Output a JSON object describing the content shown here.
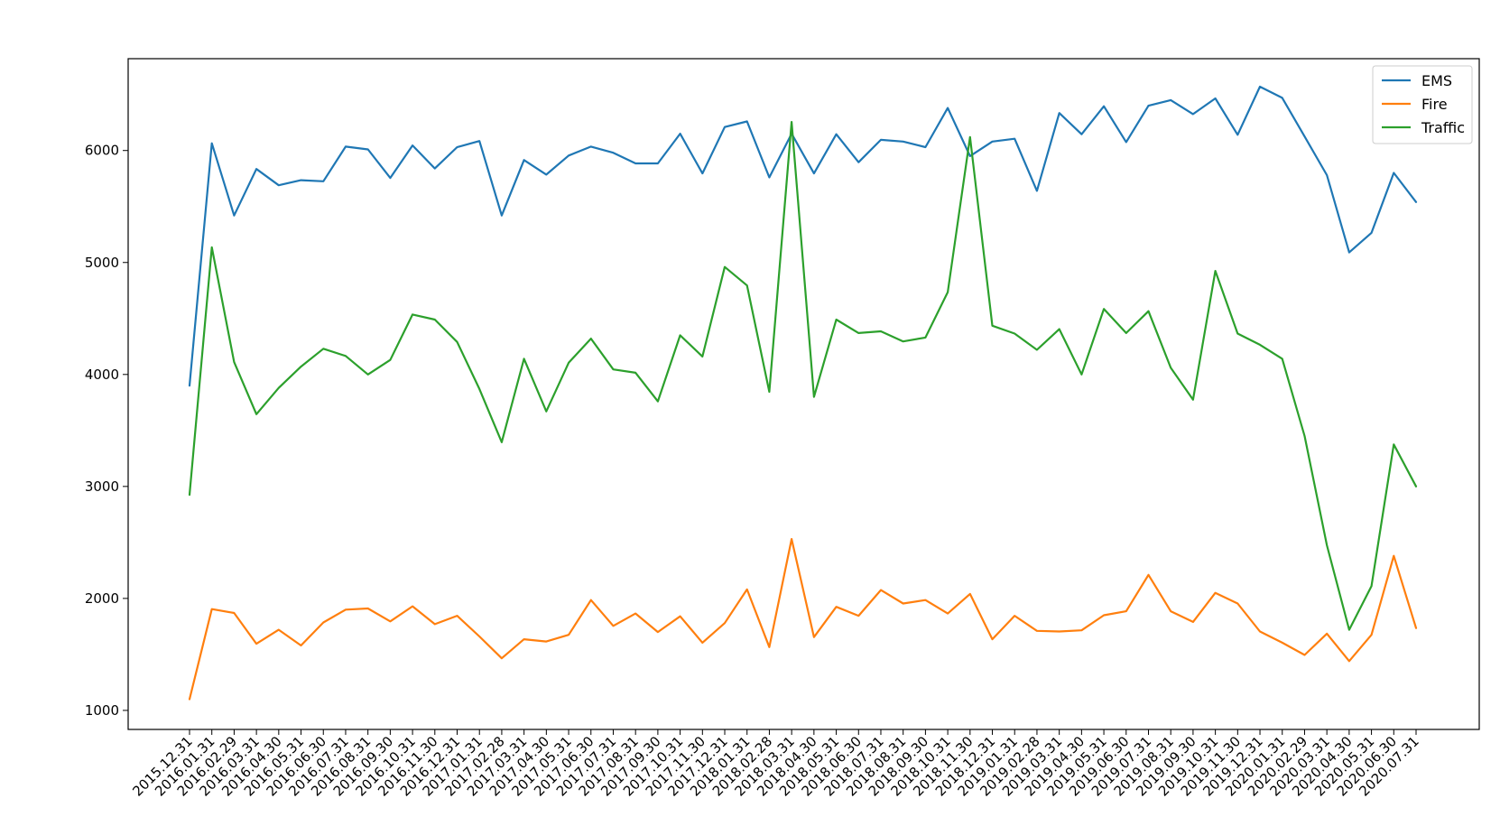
{
  "chart_data": {
    "type": "line",
    "title": "",
    "xlabel": "",
    "ylabel": "",
    "ylim": [
      830,
      6820
    ],
    "yticks": [
      1000,
      2000,
      3000,
      4000,
      5000,
      6000
    ],
    "grid": false,
    "legend_position": "top-right",
    "x": [
      "2015.12.31",
      "2016.01.31",
      "2016.02.29",
      "2016.03.31",
      "2016.04.30",
      "2016.05.31",
      "2016.06.30",
      "2016.07.31",
      "2016.08.31",
      "2016.09.30",
      "2016.10.31",
      "2016.11.30",
      "2016.12.31",
      "2017.01.31",
      "2017.02.28",
      "2017.03.31",
      "2017.04.30",
      "2017.05.31",
      "2017.06.30",
      "2017.07.31",
      "2017.08.31",
      "2017.09.30",
      "2017.10.31",
      "2017.11.30",
      "2017.12.31",
      "2018.01.31",
      "2018.02.28",
      "2018.03.31",
      "2018.04.30",
      "2018.05.31",
      "2018.06.30",
      "2018.07.31",
      "2018.08.31",
      "2018.09.30",
      "2018.10.31",
      "2018.11.30",
      "2018.12.31",
      "2019.01.31",
      "2019.02.28",
      "2019.03.31",
      "2019.04.30",
      "2019.05.31",
      "2019.06.30",
      "2019.07.31",
      "2019.08.31",
      "2019.09.30",
      "2019.10.31",
      "2019.11.30",
      "2019.12.31",
      "2020.01.31",
      "2020.02.29",
      "2020.03.31",
      "2020.04.30",
      "2020.05.31",
      "2020.06.30",
      "2020.07.31"
    ],
    "series": [
      {
        "name": "EMS",
        "color": "#1f77b4",
        "values": [
          3900,
          6065,
          5420,
          5835,
          5690,
          5735,
          5725,
          6035,
          6010,
          5755,
          6045,
          5840,
          6030,
          6085,
          5420,
          5915,
          5785,
          5955,
          6035,
          5980,
          5885,
          5885,
          6150,
          5795,
          6210,
          6260,
          5760,
          6150,
          5795,
          6145,
          5895,
          6095,
          6080,
          6030,
          6380,
          5950,
          6080,
          6105,
          5640,
          6335,
          6145,
          6395,
          6075,
          6400,
          6450,
          6325,
          6465,
          6140,
          6570,
          6470,
          6125,
          5780,
          5090,
          5265,
          5800,
          5540
        ]
      },
      {
        "name": "Fire",
        "color": "#ff7f0e",
        "values": [
          1100,
          1905,
          1870,
          1595,
          1720,
          1580,
          1785,
          1900,
          1910,
          1795,
          1930,
          1770,
          1845,
          1660,
          1465,
          1635,
          1615,
          1675,
          1985,
          1755,
          1865,
          1700,
          1840,
          1605,
          1780,
          2080,
          1565,
          2530,
          1655,
          1925,
          1845,
          2075,
          1955,
          1985,
          1865,
          2040,
          1635,
          1845,
          1710,
          1705,
          1715,
          1850,
          1885,
          2210,
          1885,
          1790,
          2050,
          1955,
          1705,
          1605,
          1495,
          1685,
          1440,
          1675,
          2380,
          1735
        ]
      },
      {
        "name": "Traffic",
        "color": "#2ca02c",
        "values": [
          2925,
          5135,
          4110,
          3645,
          3880,
          4070,
          4230,
          4165,
          4000,
          4130,
          4535,
          4490,
          4290,
          3870,
          3395,
          4140,
          3670,
          4105,
          4320,
          4045,
          4015,
          3760,
          4350,
          4160,
          4960,
          4795,
          3845,
          6255,
          3800,
          4490,
          4370,
          4385,
          4295,
          4330,
          4735,
          6120,
          4435,
          4365,
          4220,
          4405,
          4000,
          4585,
          4370,
          4565,
          4060,
          3775,
          4925,
          4365,
          4265,
          4140,
          3450,
          2475,
          1720,
          2110,
          3375,
          3000
        ]
      }
    ]
  }
}
